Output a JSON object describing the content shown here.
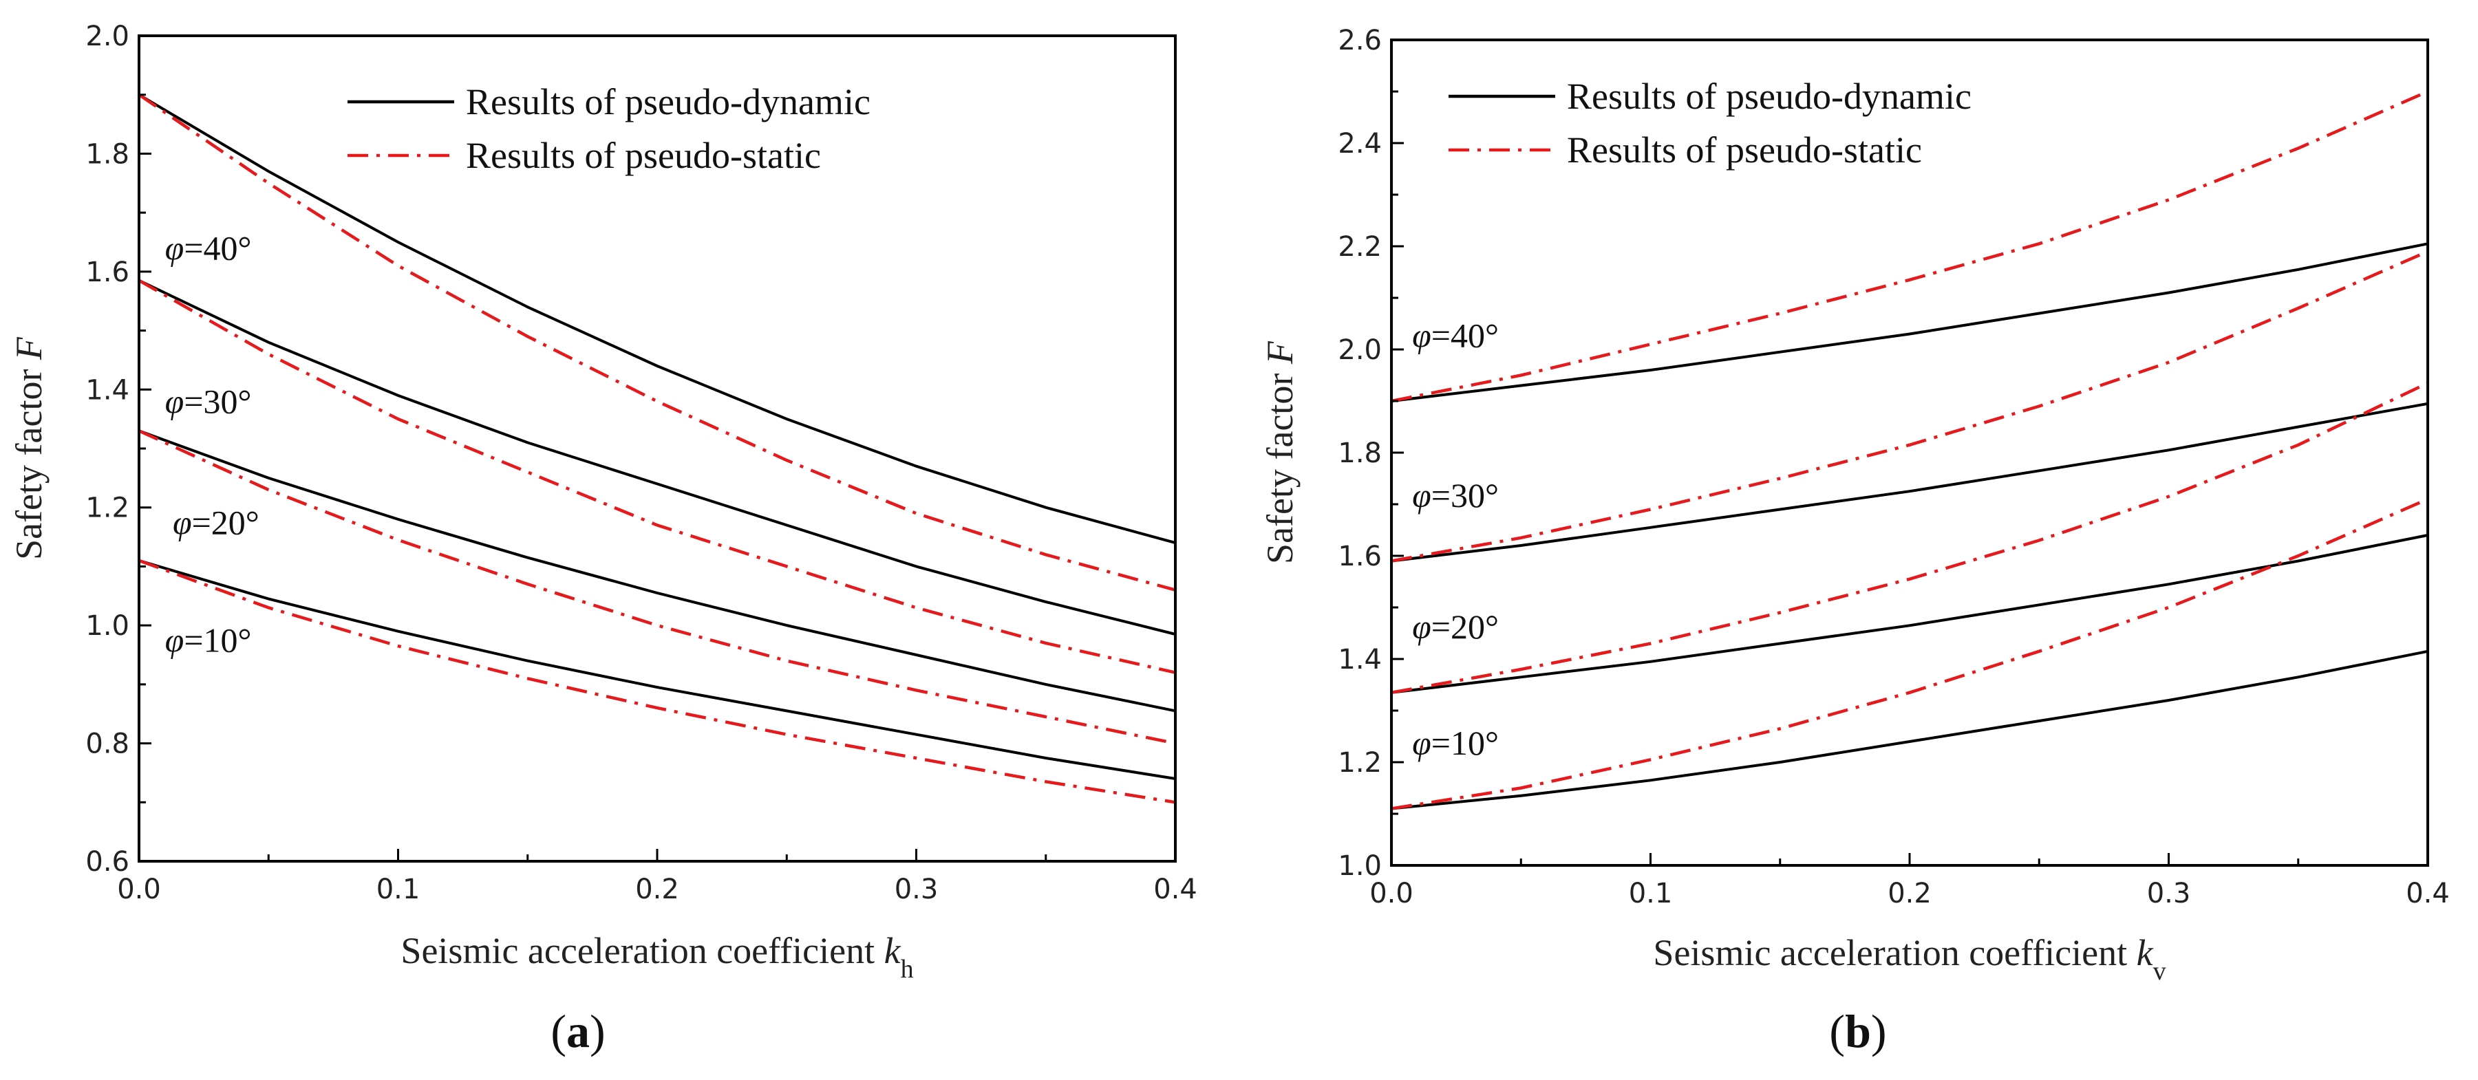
{
  "chart_data": [
    {
      "id": "a",
      "type": "line",
      "caption": "a",
      "xlabel_main": "Seismic acceleration coefficient ",
      "xlabel_var": "k",
      "xlabel_sub": "h",
      "ylabel_main": "Safety factor ",
      "ylabel_var": "F",
      "xlim": [
        0.0,
        0.4
      ],
      "ylim": [
        0.6,
        2.0
      ],
      "xticks": [
        0.0,
        0.1,
        0.2,
        0.3,
        0.4
      ],
      "xtick_labels": [
        "0.0",
        "0.1",
        "0.2",
        "0.3",
        "0.4"
      ],
      "yticks": [
        0.6,
        0.8,
        1.0,
        1.2,
        1.4,
        1.6,
        1.8,
        2.0
      ],
      "ytick_labels": [
        "0.6",
        "0.8",
        "1.0",
        "1.2",
        "1.4",
        "1.6",
        "1.8",
        "2.0"
      ],
      "legend": {
        "placement": "top-center",
        "entries": [
          "Results of pseudo-dynamic",
          "Results of pseudo-static"
        ]
      },
      "x": [
        0.0,
        0.05,
        0.1,
        0.15,
        0.2,
        0.25,
        0.3,
        0.35,
        0.4
      ],
      "series": [
        {
          "name": "Results of pseudo-dynamic",
          "phi": "40",
          "style": "solid",
          "color": "#000000",
          "values": [
            1.9,
            1.77,
            1.65,
            1.54,
            1.44,
            1.35,
            1.27,
            1.2,
            1.14
          ]
        },
        {
          "name": "Results of pseudo-static",
          "phi": "40",
          "style": "dashdot",
          "color": "#e41a1c",
          "values": [
            1.9,
            1.75,
            1.61,
            1.49,
            1.38,
            1.28,
            1.19,
            1.12,
            1.06
          ]
        },
        {
          "name": "Results of pseudo-dynamic",
          "phi": "30",
          "style": "solid",
          "color": "#000000",
          "values": [
            1.585,
            1.48,
            1.39,
            1.31,
            1.24,
            1.17,
            1.1,
            1.04,
            0.985
          ]
        },
        {
          "name": "Results of pseudo-static",
          "phi": "30",
          "style": "dashdot",
          "color": "#e41a1c",
          "values": [
            1.585,
            1.46,
            1.35,
            1.26,
            1.17,
            1.1,
            1.03,
            0.97,
            0.92
          ]
        },
        {
          "name": "Results of pseudo-dynamic",
          "phi": "20",
          "style": "solid",
          "color": "#000000",
          "values": [
            1.33,
            1.25,
            1.18,
            1.115,
            1.055,
            1.0,
            0.95,
            0.9,
            0.855
          ]
        },
        {
          "name": "Results of pseudo-static",
          "phi": "20",
          "style": "dashdot",
          "color": "#e41a1c",
          "values": [
            1.33,
            1.23,
            1.145,
            1.07,
            1.0,
            0.94,
            0.89,
            0.845,
            0.8
          ]
        },
        {
          "name": "Results of pseudo-dynamic",
          "phi": "10",
          "style": "solid",
          "color": "#000000",
          "values": [
            1.11,
            1.045,
            0.99,
            0.94,
            0.895,
            0.855,
            0.815,
            0.775,
            0.74
          ]
        },
        {
          "name": "Results of pseudo-static",
          "phi": "10",
          "style": "dashdot",
          "color": "#e41a1c",
          "values": [
            1.11,
            1.03,
            0.965,
            0.91,
            0.86,
            0.815,
            0.775,
            0.735,
            0.7
          ]
        }
      ],
      "annotations": [
        {
          "var": "φ",
          "text": "=40°",
          "at_x": 0.01,
          "at_y": 1.62
        },
        {
          "var": "φ",
          "text": "=30°",
          "at_x": 0.01,
          "at_y": 1.36
        },
        {
          "var": "φ",
          "text": "=20°",
          "at_x": 0.013,
          "at_y": 1.155
        },
        {
          "var": "φ",
          "text": "=10°",
          "at_x": 0.01,
          "at_y": 0.955
        }
      ]
    },
    {
      "id": "b",
      "type": "line",
      "caption": "b",
      "xlabel_main": "Seismic acceleration coefficient ",
      "xlabel_var": "k",
      "xlabel_sub": "v",
      "ylabel_main": "Safety factor ",
      "ylabel_var": "F",
      "xlim": [
        0.0,
        0.4
      ],
      "ylim": [
        1.0,
        2.6
      ],
      "xticks": [
        0.0,
        0.1,
        0.2,
        0.3,
        0.4
      ],
      "xtick_labels": [
        "0.0",
        "0.1",
        "0.2",
        "0.3",
        "0.4"
      ],
      "yticks": [
        1.0,
        1.2,
        1.4,
        1.6,
        1.8,
        2.0,
        2.2,
        2.4,
        2.6
      ],
      "ytick_labels": [
        "1.0",
        "1.2",
        "1.4",
        "1.6",
        "1.8",
        "2.0",
        "2.2",
        "2.4",
        "2.6"
      ],
      "legend": {
        "placement": "top-left",
        "entries": [
          "Results of pseudo-dynamic",
          "Results of pseudo-static"
        ]
      },
      "x": [
        0.0,
        0.05,
        0.1,
        0.15,
        0.2,
        0.25,
        0.3,
        0.35,
        0.4
      ],
      "series": [
        {
          "name": "Results of pseudo-dynamic",
          "phi": "40",
          "style": "solid",
          "color": "#000000",
          "values": [
            1.9,
            1.93,
            1.96,
            1.995,
            2.03,
            2.07,
            2.11,
            2.155,
            2.205
          ]
        },
        {
          "name": "Results of pseudo-static",
          "phi": "40",
          "style": "dashdot",
          "color": "#e41a1c",
          "values": [
            1.9,
            1.95,
            2.01,
            2.07,
            2.135,
            2.205,
            2.29,
            2.39,
            2.5
          ]
        },
        {
          "name": "Results of pseudo-dynamic",
          "phi": "30",
          "style": "solid",
          "color": "#000000",
          "values": [
            1.59,
            1.62,
            1.655,
            1.69,
            1.725,
            1.765,
            1.805,
            1.85,
            1.895
          ]
        },
        {
          "name": "Results of pseudo-static",
          "phi": "30",
          "style": "dashdot",
          "color": "#e41a1c",
          "values": [
            1.59,
            1.635,
            1.69,
            1.75,
            1.815,
            1.89,
            1.975,
            2.08,
            2.19
          ]
        },
        {
          "name": "Results of pseudo-dynamic",
          "phi": "20",
          "style": "solid",
          "color": "#000000",
          "values": [
            1.335,
            1.365,
            1.395,
            1.43,
            1.465,
            1.505,
            1.545,
            1.59,
            1.64
          ]
        },
        {
          "name": "Results of pseudo-static",
          "phi": "20",
          "style": "dashdot",
          "color": "#e41a1c",
          "values": [
            1.335,
            1.38,
            1.43,
            1.49,
            1.555,
            1.63,
            1.715,
            1.815,
            1.935
          ]
        },
        {
          "name": "Results of pseudo-dynamic",
          "phi": "10",
          "style": "solid",
          "color": "#000000",
          "values": [
            1.11,
            1.135,
            1.165,
            1.2,
            1.24,
            1.28,
            1.32,
            1.365,
            1.415
          ]
        },
        {
          "name": "Results of pseudo-static",
          "phi": "10",
          "style": "dashdot",
          "color": "#e41a1c",
          "values": [
            1.11,
            1.15,
            1.205,
            1.265,
            1.335,
            1.415,
            1.5,
            1.6,
            1.71
          ]
        }
      ],
      "annotations": [
        {
          "var": "φ",
          "text": "=40°",
          "at_x": 0.008,
          "at_y": 2.005
        },
        {
          "var": "φ",
          "text": "=30°",
          "at_x": 0.008,
          "at_y": 1.695
        },
        {
          "var": "φ",
          "text": "=20°",
          "at_x": 0.008,
          "at_y": 1.44
        },
        {
          "var": "φ",
          "text": "=10°",
          "at_x": 0.008,
          "at_y": 1.215
        }
      ]
    }
  ]
}
